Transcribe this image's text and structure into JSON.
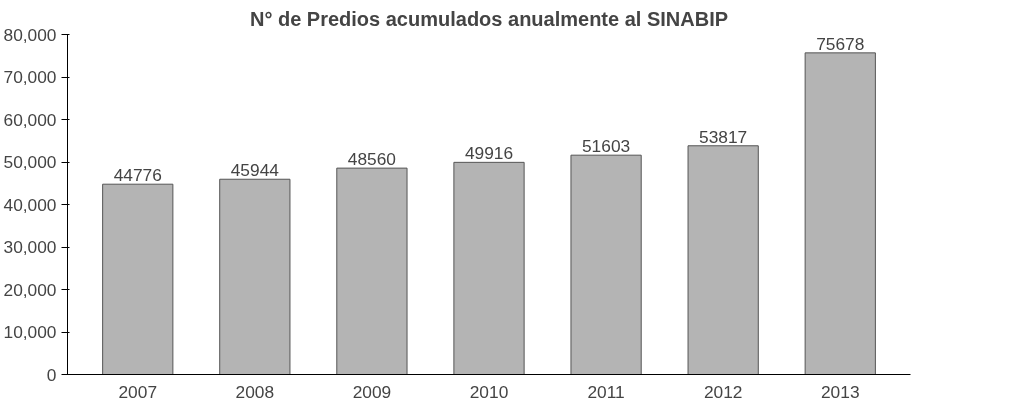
{
  "chart_data": {
    "type": "bar",
    "title": "N° de Predios acumulados anualmente al SINABIP",
    "categories": [
      "2007",
      "2008",
      "2009",
      "2010",
      "2011",
      "2012",
      "2013"
    ],
    "values": [
      44776,
      45944,
      48560,
      49916,
      51603,
      53817,
      75678
    ],
    "color": "#b4b4b4",
    "ylim": [
      0,
      80000
    ],
    "yticks": [
      {
        "value": 0,
        "label": "0"
      },
      {
        "value": 10000,
        "label": "10,000"
      },
      {
        "value": 20000,
        "label": "20,000"
      },
      {
        "value": 30000,
        "label": "30,000"
      },
      {
        "value": 40000,
        "label": "40,000"
      },
      {
        "value": 50000,
        "label": "50,000"
      },
      {
        "value": 60000,
        "label": "60,000"
      },
      {
        "value": 70000,
        "label": "70,000"
      },
      {
        "value": 80000,
        "label": "80,000"
      }
    ],
    "data_labels": true,
    "grid": false
  }
}
